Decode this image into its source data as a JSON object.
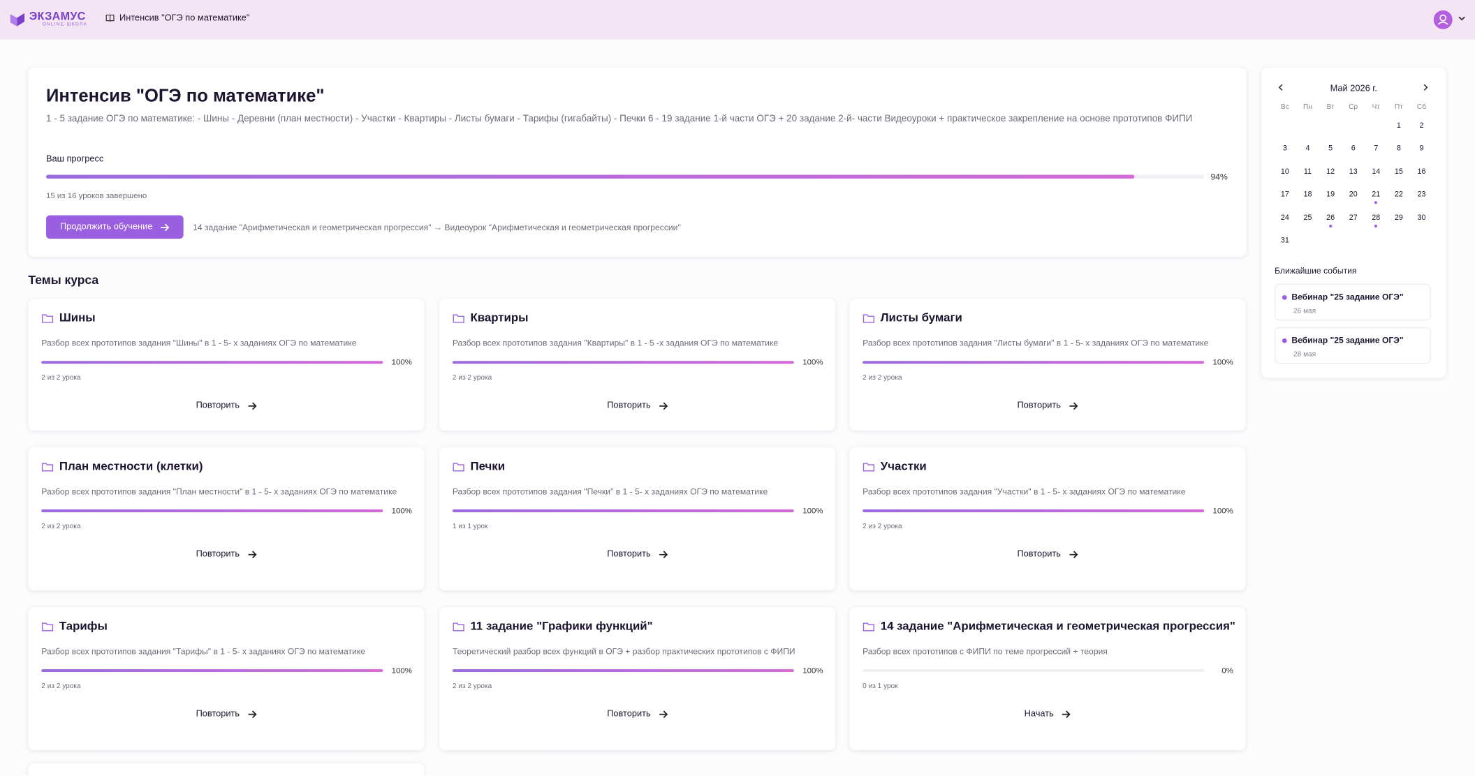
{
  "header": {
    "logo_title": "ЭКЗАМУС",
    "logo_subtitle": "ONLINE-ШКОЛА",
    "course": "Интенсив \"ОГЭ по математике\""
  },
  "course": {
    "title": "Интенсив \"ОГЭ по математике\"",
    "description": "1 - 5 задание ОГЭ по математике: - Шины - Деревни (план местности) - Участки - Квартиры - Листы бумаги - Тарифы (гигабайты) - Печки 6 - 19 задание 1-й части ОГЭ + 20 задание 2-й- части Видеоуроки + практическое закрепление на основе прототипов ФИПИ",
    "progress_label": "Ваш прогресс",
    "progress": 94,
    "progress_text": "94%",
    "completed": "15 из 16 уроков завершено",
    "button": "Продолжить обучение",
    "next_lesson": "14 задание \"Арифметическая и геометрическая прогрессия\" → Видеоурок \"Арифметическая и геометрическая прогрессии\""
  },
  "topics_title": "Темы курса",
  "topics": [
    {
      "title": "Шины",
      "description": "Разбор всех прототипов задания \"Шины\" в 1 - 5- х заданиях ОГЭ по математике",
      "progress": 100,
      "progress_text": "100%",
      "lessons": "2 из 2 урока",
      "action": "Повторить"
    },
    {
      "title": "Квартиры",
      "description": "Разбор всех прототипов задания \"Квартиры\" в 1 - 5 -х задания ОГЭ по математике",
      "progress": 100,
      "progress_text": "100%",
      "lessons": "2 из 2 урока",
      "action": "Повторить"
    },
    {
      "title": "Листы бумаги",
      "description": "Разбор всех прототипов задания \"Листы бумаги\" в 1 - 5- х заданиях ОГЭ по математике",
      "progress": 100,
      "progress_text": "100%",
      "lessons": "2 из 2 урока",
      "action": "Повторить"
    },
    {
      "title": "План местности (клетки)",
      "description": "Разбор всех прототипов задания \"План местности\" в 1 - 5- х заданиях ОГЭ по математике",
      "progress": 100,
      "progress_text": "100%",
      "lessons": "2 из 2 урока",
      "action": "Повторить"
    },
    {
      "title": "Печки",
      "description": "Разбор всех прототипов задания \"Печки\" в 1 - 5- х заданиях ОГЭ по математике",
      "progress": 100,
      "progress_text": "100%",
      "lessons": "1 из 1 урок",
      "action": "Повторить"
    },
    {
      "title": "Участки",
      "description": "Разбор всех прототипов задания \"Участки\" в 1 - 5- х заданиях ОГЭ по математике",
      "progress": 100,
      "progress_text": "100%",
      "lessons": "2 из 2 урока",
      "action": "Повторить"
    },
    {
      "title": "Тарифы",
      "description": "Разбор всех прототипов задания \"Тарифы\" в 1 - 5- х заданиях ОГЭ по математике",
      "progress": 100,
      "progress_text": "100%",
      "lessons": "2 из 2 урока",
      "action": "Повторить"
    },
    {
      "title": "11 задание \"Графики функций\"",
      "description": "Теоретический разбор всех функций в ОГЭ + разбор практических прототипов с ФИПИ",
      "progress": 100,
      "progress_text": "100%",
      "lessons": "2 из 2 урока",
      "action": "Повторить"
    },
    {
      "title": "14 задание \"Арифметическая и геометрическая прогрессия\"",
      "description": "Разбор всех прототипов с ФИПИ по теме прогрессий + теория",
      "progress": 0,
      "progress_text": "0%",
      "lessons": "0 из 1 урок",
      "action": "Начать"
    }
  ],
  "calendar": {
    "month": "Май 2026 г.",
    "weekdays": [
      "Вс",
      "Пн",
      "Вт",
      "Ср",
      "Чт",
      "Пт",
      "Сб"
    ],
    "weeks": [
      [
        null,
        null,
        null,
        null,
        null,
        1,
        2
      ],
      [
        3,
        4,
        5,
        6,
        7,
        8,
        9
      ],
      [
        10,
        11,
        12,
        13,
        14,
        15,
        16
      ],
      [
        17,
        18,
        19,
        20,
        21,
        22,
        23
      ],
      [
        24,
        25,
        26,
        27,
        28,
        29,
        30
      ],
      [
        31
      ]
    ],
    "marked_days": [
      21,
      26,
      28
    ]
  },
  "events_title": "Ближайшие события",
  "events": [
    {
      "title": "Вебинар \"25 задание ОГЭ\"",
      "date": "26 мая"
    },
    {
      "title": "Вебинар \"25 задание ОГЭ\"",
      "date": "28 мая"
    }
  ]
}
